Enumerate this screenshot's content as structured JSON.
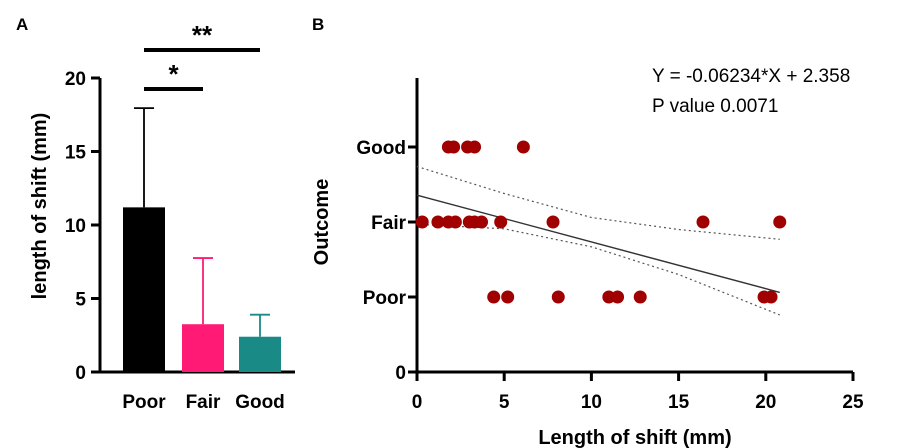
{
  "panels": {
    "a_label": "A",
    "b_label": "B"
  },
  "chart_data": [
    {
      "type": "bar",
      "panel": "A",
      "categories": [
        "Poor",
        "Fair",
        "Good"
      ],
      "values": [
        11.2,
        3.25,
        2.4
      ],
      "error_upper": [
        17.95,
        7.75,
        3.9
      ],
      "colors": [
        "#000000",
        "#ff1a75",
        "#1a8a86"
      ],
      "title": "",
      "xlabel": "",
      "ylabel": "length of shift (mm)",
      "ylim": [
        0,
        20
      ],
      "yticks": [
        "0",
        "5",
        "10",
        "15",
        "20"
      ],
      "significance": [
        {
          "from": "Poor",
          "to": "Fair",
          "label": "*"
        },
        {
          "from": "Poor",
          "to": "Good",
          "label": "**"
        }
      ],
      "grid": false,
      "legend": "none"
    },
    {
      "type": "scatter",
      "panel": "B",
      "title": "",
      "xlabel": "Length of shift (mm)",
      "ylabel": "Outcome",
      "xlim": [
        0,
        25
      ],
      "xticks": [
        "0",
        "5",
        "10",
        "15",
        "20",
        "25"
      ],
      "ylim": [
        0,
        3
      ],
      "ytick_values": [
        0,
        1,
        2,
        3
      ],
      "ytick_labels": [
        "0",
        "Poor",
        "Fair",
        "Good"
      ],
      "points_color": "#a00000",
      "points": [
        {
          "x": 0.3,
          "y": 2
        },
        {
          "x": 1.2,
          "y": 2
        },
        {
          "x": 1.8,
          "y": 2
        },
        {
          "x": 2.2,
          "y": 2
        },
        {
          "x": 3.0,
          "y": 2
        },
        {
          "x": 3.3,
          "y": 2
        },
        {
          "x": 3.7,
          "y": 2
        },
        {
          "x": 4.8,
          "y": 2
        },
        {
          "x": 7.8,
          "y": 2
        },
        {
          "x": 16.4,
          "y": 2
        },
        {
          "x": 20.8,
          "y": 2
        },
        {
          "x": 1.8,
          "y": 3
        },
        {
          "x": 2.1,
          "y": 3
        },
        {
          "x": 2.9,
          "y": 3
        },
        {
          "x": 3.3,
          "y": 3
        },
        {
          "x": 6.1,
          "y": 3
        },
        {
          "x": 4.4,
          "y": 1
        },
        {
          "x": 5.2,
          "y": 1
        },
        {
          "x": 8.1,
          "y": 1
        },
        {
          "x": 11.0,
          "y": 1
        },
        {
          "x": 11.5,
          "y": 1
        },
        {
          "x": 12.8,
          "y": 1
        },
        {
          "x": 19.9,
          "y": 1
        },
        {
          "x": 20.3,
          "y": 1
        }
      ],
      "regression": {
        "slope": -0.06234,
        "intercept": 2.358,
        "x_range": [
          0,
          20.8
        ]
      },
      "confidence_band": {
        "upper": [
          [
            0,
            2.74
          ],
          [
            5,
            2.38
          ],
          [
            10,
            2.06
          ],
          [
            15,
            1.9
          ],
          [
            20.8,
            1.77
          ]
        ],
        "lower": [
          [
            0,
            1.97
          ],
          [
            5,
            1.91
          ],
          [
            10,
            1.67
          ],
          [
            15,
            1.3
          ],
          [
            20.8,
            0.76
          ]
        ]
      },
      "annotations": [
        "Y = -0.06234*X + 2.358",
        "P value 0.0071"
      ],
      "grid": false,
      "legend": "none"
    }
  ]
}
